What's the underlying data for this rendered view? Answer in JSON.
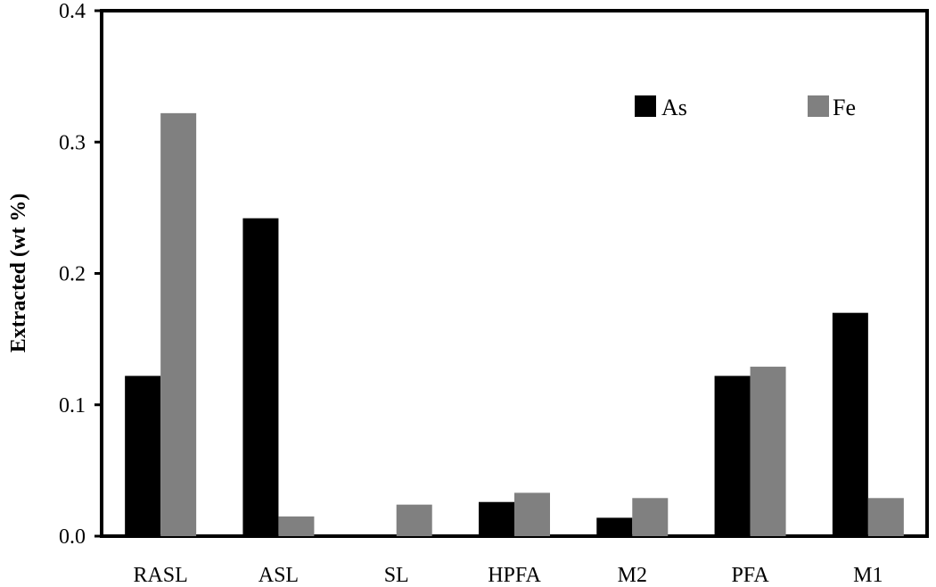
{
  "chart_data": {
    "type": "bar",
    "title": "",
    "xlabel": "",
    "ylabel": "Extracted (wt %)",
    "categories": [
      "RASL",
      "ASL",
      "SL",
      "HPFA",
      "M2",
      "PFA",
      "M1"
    ],
    "series": [
      {
        "name": "As",
        "color": "#000000",
        "values": [
          0.122,
          0.242,
          0.0,
          0.026,
          0.014,
          0.122,
          0.17
        ]
      },
      {
        "name": "Fe",
        "color": "#808080",
        "values": [
          0.322,
          0.015,
          0.024,
          0.033,
          0.029,
          0.129,
          0.029
        ]
      }
    ],
    "ylim": [
      0,
      0.4
    ],
    "yticks": [
      "0.0",
      "0.1",
      "0.2",
      "0.3",
      "0.4"
    ],
    "grid": false,
    "legend_position": "top-right"
  }
}
